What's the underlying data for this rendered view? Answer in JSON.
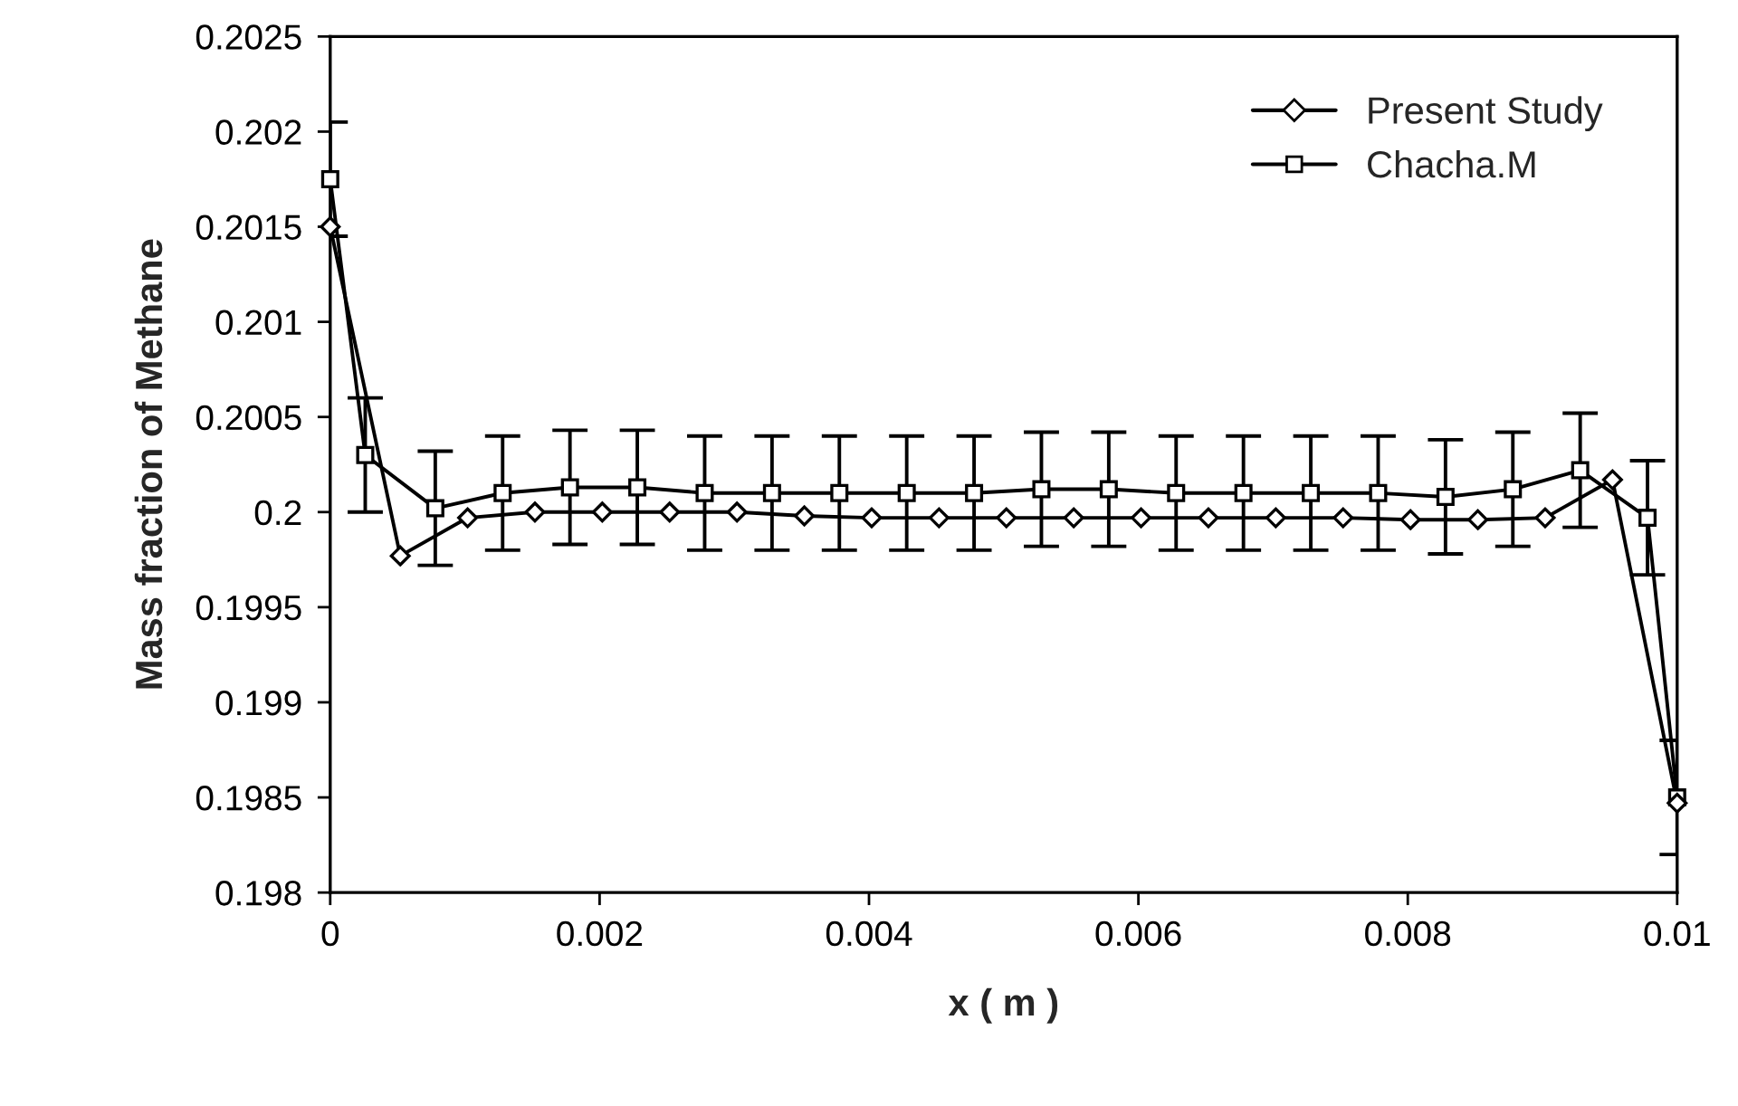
{
  "chart_data": {
    "type": "line",
    "xlabel": "x ( m )",
    "ylabel": "Mass fraction of Methane",
    "xlim": [
      0,
      0.01
    ],
    "xticks": [
      0,
      0.002,
      0.004,
      0.006,
      0.008,
      0.01
    ],
    "ylim": [
      0.198,
      0.2025
    ],
    "yticks": [
      0.198,
      0.1985,
      0.199,
      0.1995,
      0.2,
      0.2005,
      0.201,
      0.2015,
      0.202,
      0.2025
    ],
    "grid": false,
    "legend": "top right",
    "series": [
      {
        "name": "Present Study",
        "color": "#000000",
        "marker": "diamond",
        "x": [
          0,
          0.00052,
          0.00102,
          0.00152,
          0.00202,
          0.00252,
          0.00302,
          0.00352,
          0.00402,
          0.00452,
          0.00502,
          0.00552,
          0.00602,
          0.00652,
          0.00702,
          0.00752,
          0.00802,
          0.00852,
          0.00902,
          0.00952,
          0.01
        ],
        "values": [
          0.2015,
          0.19977,
          0.19997,
          0.2,
          0.2,
          0.2,
          0.2,
          0.19998,
          0.19997,
          0.19997,
          0.19997,
          0.19997,
          0.19997,
          0.19997,
          0.19997,
          0.19997,
          0.19996,
          0.19996,
          0.19997,
          0.20017,
          0.19847
        ]
      },
      {
        "name": "Chacha.M",
        "color": "#000000",
        "marker": "square",
        "x": [
          0,
          0.00026,
          0.00078,
          0.00128,
          0.00178,
          0.00228,
          0.00278,
          0.00328,
          0.00378,
          0.00428,
          0.00478,
          0.00528,
          0.00578,
          0.00628,
          0.00678,
          0.00728,
          0.00778,
          0.00828,
          0.00878,
          0.00928,
          0.00978,
          0.01
        ],
        "values": [
          0.20175,
          0.2003,
          0.20002,
          0.2001,
          0.20013,
          0.20013,
          0.2001,
          0.2001,
          0.2001,
          0.2001,
          0.2001,
          0.20012,
          0.20012,
          0.2001,
          0.2001,
          0.2001,
          0.2001,
          0.20008,
          0.20012,
          0.20022,
          0.19997,
          0.1985
        ],
        "errors": [
          0.0003,
          0.0003,
          0.0003,
          0.0003,
          0.0003,
          0.0003,
          0.0003,
          0.0003,
          0.0003,
          0.0003,
          0.0003,
          0.0003,
          0.0003,
          0.0003,
          0.0003,
          0.0003,
          0.0003,
          0.0003,
          0.0003,
          0.0003,
          0.0003,
          0.0003
        ]
      }
    ]
  }
}
